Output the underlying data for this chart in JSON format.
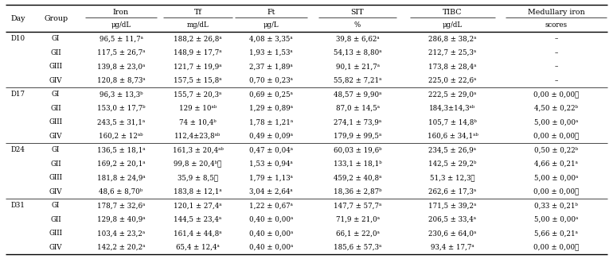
{
  "rows": [
    [
      "D10",
      "GI",
      "96,5 ± 11,7ᵃ",
      "188,2 ± 26,8ᵃ",
      "4,08 ± 3,35ᵃ",
      "39,8 ± 6,62ᵃ",
      "286,8 ± 38,2ᵃ",
      "–"
    ],
    [
      "",
      "GII",
      "117,5 ± 26,7ᵃ",
      "148,9 ± 17,7ᵃ",
      "1,93 ± 1,53ᵃ",
      "54,13 ± 8,80ᵃ",
      "212,7 ± 25,3ᵃ",
      "–"
    ],
    [
      "",
      "GIII",
      "139,8 ± 23,0ᵃ",
      "121,7 ± 19,9ᵃ",
      "2,37 ± 1,89ᵃ",
      "90,1 ± 21,7ᵃ",
      "173,8 ± 28,4ᵃ",
      "–"
    ],
    [
      "",
      "GIV",
      "120,8 ± 8,73ᵃ",
      "157,5 ± 15,8ᵃ",
      "0,70 ± 0,23ᵃ",
      "55,82 ± 7,21ᵃ",
      "225,0 ± 22,6ᵃ",
      "–"
    ],
    [
      "D17",
      "GI",
      "96,3 ± 13,3ᵇ",
      "155,7 ± 20,3ᵃ",
      "0,69 ± 0,25ᵃ",
      "48,57 ± 9,90ᵃ",
      "222,5 ± 29,0ᵃ",
      "0,00 ± 0,00᪝"
    ],
    [
      "",
      "GII",
      "153,0 ± 17,7ᵇ",
      "129 ± 10ᵃᵇ",
      "1,29 ± 0,89ᵃ",
      "87,0 ± 14,5ᵃ",
      "184,3±14,3ᵃᵇ",
      "4,50 ± 0,22ᵇ"
    ],
    [
      "",
      "GIII",
      "243,5 ± 31,1ᵃ",
      "74 ± 10,4ᵇ",
      "1,78 ± 1,21ᵃ",
      "274,1 ± 73,9ᵃ",
      "105,7 ± 14,8ᵇ",
      "5,00 ± 0,00ᵃ"
    ],
    [
      "",
      "GIV",
      "160,2 ± 12ᵃᵇ",
      "112,4±23,8ᵃᵇ",
      "0,49 ± 0,09ᵃ",
      "179,9 ± 99,5ᵃ",
      "160,6 ± 34,1ᵃᵇ",
      "0,00 ± 0,00᪝"
    ],
    [
      "D24",
      "GI",
      "136,5 ± 18,1ᵃ",
      "161,3 ± 20,4ᵃᵇ",
      "0,47 ± 0,04ᵃ",
      "60,03 ± 19,6ᵇ",
      "234,5 ± 26,9ᵃ",
      "0,50 ± 0,22ᵇ"
    ],
    [
      "",
      "GII",
      "169,2 ± 20,1ᵃ",
      "99,8 ± 20,4ᵇ᪝",
      "1,53 ± 0,94ᵃ",
      "133,1 ± 18,1ᵇ",
      "142,5 ± 29,2ᵇ",
      "4,66 ± 0,21ᵃ"
    ],
    [
      "",
      "GIII",
      "181,8 ± 24,9ᵃ",
      "35,9 ± 8,5᪝",
      "1,79 ± 1,13ᵃ",
      "459,2 ± 40,8ᵃ",
      "51,3 ± 12,3᪝",
      "5,00 ± 0,00ᵃ"
    ],
    [
      "",
      "GIV",
      "48,6 ± 8,70ᵇ",
      "183,8 ± 12,1ᵃ",
      "3,04 ± 2,64ᵃ",
      "18,36 ± 2,87ᵇ",
      "262,6 ± 17,3ᵃ",
      "0,00 ± 0,00᪝"
    ],
    [
      "D31",
      "GI",
      "178,7 ± 32,6ᵃ",
      "120,1 ± 27,4ᵃ",
      "1,22 ± 0,67ᵃ",
      "147,7 ± 57,7ᵃ",
      "171,5 ± 39,2ᵃ",
      "0,33 ± 0,21ᵇ"
    ],
    [
      "",
      "GII",
      "129,8 ± 40,9ᵃ",
      "144,5 ± 23,4ᵃ",
      "0,40 ± 0,00ᵃ",
      "71,9 ± 21,0ᵃ",
      "206,5 ± 33,4ᵃ",
      "5,00 ± 0,00ᵃ"
    ],
    [
      "",
      "GIII",
      "103,4 ± 23,2ᵃ",
      "161,4 ± 44,8ᵃ",
      "0,40 ± 0,00ᵃ",
      "66,1 ± 22,0ᵃ",
      "230,6 ± 64,0ᵃ",
      "5,66 ± 0,21ᵃ"
    ],
    [
      "",
      "GIV",
      "142,2 ± 20,2ᵃ",
      "65,4 ± 12,4ᵃ",
      "0,40 ± 0,00ᵃ",
      "185,6 ± 57,3ᵃ",
      "93,4 ± 17,7ᵃ",
      "0,00 ± 0,00᪝"
    ]
  ],
  "separator_rows": [
    3,
    7,
    11
  ],
  "col_labels": [
    "Iron",
    "Tf",
    "Ft",
    "SIT",
    "TIBC",
    "Medullary iron"
  ],
  "unit_labels": [
    "μg/dL",
    "mg/dL",
    "μg/L",
    "%",
    "μg/dL",
    "scores"
  ],
  "bg_color": "#ffffff",
  "text_color": "#000000",
  "fontsize": 6.2,
  "header_fontsize": 6.8
}
